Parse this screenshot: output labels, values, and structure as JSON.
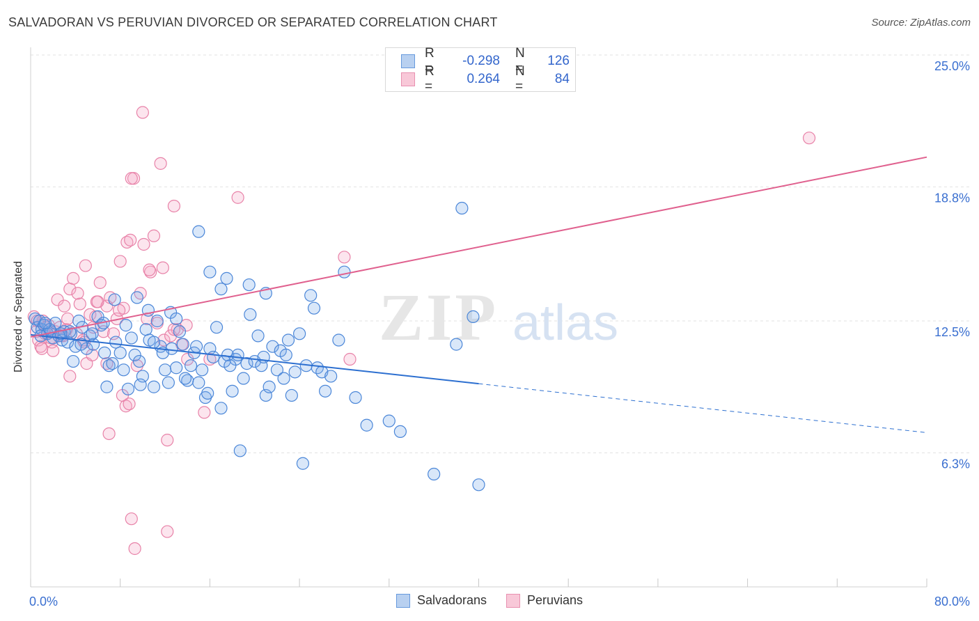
{
  "header": {
    "title": "SALVADORAN VS PERUVIAN DIVORCED OR SEPARATED CORRELATION CHART",
    "source": "Source: ZipAtlas.com"
  },
  "watermark": {
    "zip": "ZIP",
    "atlas": "atlas"
  },
  "legend": {
    "rows": [
      {
        "r_label": "R =",
        "r_value": "-0.298",
        "n_label": "N =",
        "n_value": "126",
        "color": "#6699dd",
        "fill": "#b8d0f0"
      },
      {
        "r_label": "R =",
        "r_value": "0.264",
        "n_label": "N =",
        "n_value": "84",
        "color": "#e890b0",
        "fill": "#f8c8d8"
      }
    ]
  },
  "bottom_legend": {
    "items": [
      "Salvadorans",
      "Peruvians"
    ]
  },
  "chart_data": {
    "type": "scatter",
    "title": "SALVADORAN VS PERUVIAN DIVORCED OR SEPARATED CORRELATION CHART",
    "ylabel": "Divorced or Separated",
    "xlabel": "",
    "xlim": [
      0,
      80
    ],
    "ylim": [
      0,
      25
    ],
    "x_tick_labels": [
      "0.0%",
      "80.0%"
    ],
    "y_tick_labels": [
      "25.0%",
      "18.8%",
      "12.5%",
      "6.3%"
    ],
    "y_ticks": [
      25.0,
      18.8,
      12.5,
      6.3
    ],
    "grid": true,
    "legend_position": "top-center",
    "series": [
      {
        "name": "Salvadorans",
        "color": "#4a86d8",
        "fill": "rgba(120,170,235,0.28)",
        "trend": {
          "x0": 0,
          "y0": 11.85,
          "x1": 40,
          "y1": 9.55,
          "dash_to_x": 80,
          "dash_to_y": 7.25,
          "color": "#2c6fd0"
        },
        "points": [
          [
            0.4,
            12.6
          ],
          [
            0.6,
            12.2
          ],
          [
            0.8,
            12.5
          ],
          [
            1.0,
            12.1
          ],
          [
            1.2,
            12.3
          ],
          [
            1.5,
            11.9
          ],
          [
            1.8,
            12.0
          ],
          [
            2.0,
            11.7
          ],
          [
            2.2,
            12.4
          ],
          [
            2.5,
            11.8
          ],
          [
            2.8,
            11.6
          ],
          [
            3.0,
            12.0
          ],
          [
            3.3,
            11.5
          ],
          [
            3.6,
            11.9
          ],
          [
            3.8,
            10.6
          ],
          [
            4.0,
            11.3
          ],
          [
            4.3,
            12.5
          ],
          [
            4.6,
            12.2
          ],
          [
            5.0,
            11.2
          ],
          [
            5.3,
            11.8
          ],
          [
            5.6,
            11.4
          ],
          [
            6.0,
            12.7
          ],
          [
            6.3,
            12.3
          ],
          [
            6.6,
            11.0
          ],
          [
            7.0,
            10.4
          ],
          [
            7.3,
            10.5
          ],
          [
            7.6,
            11.5
          ],
          [
            8.0,
            11.0
          ],
          [
            8.3,
            10.2
          ],
          [
            8.7,
            9.3
          ],
          [
            9.0,
            11.7
          ],
          [
            9.3,
            10.9
          ],
          [
            9.7,
            10.6
          ],
          [
            10.0,
            9.9
          ],
          [
            10.3,
            12.1
          ],
          [
            10.6,
            11.6
          ],
          [
            11.0,
            9.4
          ],
          [
            11.3,
            12.5
          ],
          [
            11.6,
            11.3
          ],
          [
            12.0,
            10.2
          ],
          [
            12.3,
            9.6
          ],
          [
            12.6,
            11.2
          ],
          [
            13.0,
            10.3
          ],
          [
            13.3,
            12.0
          ],
          [
            13.6,
            11.4
          ],
          [
            14.0,
            9.7
          ],
          [
            14.3,
            10.4
          ],
          [
            14.6,
            11.0
          ],
          [
            15.0,
            9.6
          ],
          [
            15.3,
            10.2
          ],
          [
            15.6,
            8.9
          ],
          [
            16.0,
            11.2
          ],
          [
            16.3,
            10.8
          ],
          [
            16.6,
            12.2
          ],
          [
            17.0,
            8.4
          ],
          [
            17.3,
            10.6
          ],
          [
            17.6,
            10.9
          ],
          [
            18.0,
            9.2
          ],
          [
            18.3,
            10.7
          ],
          [
            18.7,
            6.4
          ],
          [
            19.0,
            9.8
          ],
          [
            19.3,
            10.5
          ],
          [
            19.6,
            12.8
          ],
          [
            20.0,
            10.6
          ],
          [
            20.3,
            11.8
          ],
          [
            20.6,
            10.4
          ],
          [
            21.0,
            9.0
          ],
          [
            21.3,
            9.4
          ],
          [
            21.6,
            11.3
          ],
          [
            22.0,
            10.2
          ],
          [
            22.3,
            11.1
          ],
          [
            22.6,
            9.8
          ],
          [
            23.0,
            11.6
          ],
          [
            23.3,
            9.0
          ],
          [
            23.6,
            10.1
          ],
          [
            24.0,
            11.9
          ],
          [
            24.3,
            5.8
          ],
          [
            24.6,
            10.4
          ],
          [
            25.0,
            13.7
          ],
          [
            25.3,
            13.1
          ],
          [
            25.6,
            10.3
          ],
          [
            26.0,
            10.1
          ],
          [
            26.3,
            9.2
          ],
          [
            27.5,
            11.6
          ],
          [
            28.0,
            14.8
          ],
          [
            29.0,
            8.9
          ],
          [
            30.0,
            7.6
          ],
          [
            32.0,
            7.8
          ],
          [
            33.0,
            7.3
          ],
          [
            36.0,
            5.3
          ],
          [
            38.0,
            11.4
          ],
          [
            38.5,
            17.8
          ],
          [
            39.5,
            12.7
          ],
          [
            40.0,
            4.8
          ],
          [
            15.0,
            16.7
          ],
          [
            16.0,
            14.8
          ],
          [
            17.0,
            14.0
          ],
          [
            17.5,
            14.5
          ],
          [
            19.5,
            14.2
          ],
          [
            21.0,
            13.8
          ],
          [
            9.5,
            13.6
          ],
          [
            10.5,
            13.0
          ],
          [
            11.0,
            11.5
          ],
          [
            12.5,
            12.9
          ],
          [
            13.0,
            12.6
          ],
          [
            8.5,
            12.3
          ],
          [
            7.5,
            13.5
          ],
          [
            6.5,
            12.4
          ],
          [
            5.5,
            11.9
          ],
          [
            4.5,
            11.4
          ],
          [
            3.5,
            12.0
          ],
          [
            2.7,
            11.9
          ],
          [
            1.7,
            12.1
          ],
          [
            0.9,
            11.8
          ],
          [
            1.3,
            12.4
          ],
          [
            20.8,
            10.8
          ],
          [
            18.5,
            10.9
          ],
          [
            14.8,
            11.3
          ],
          [
            11.8,
            11.0
          ],
          [
            6.8,
            9.4
          ],
          [
            9.8,
            9.5
          ],
          [
            13.8,
            9.8
          ],
          [
            15.8,
            9.1
          ],
          [
            17.8,
            10.4
          ],
          [
            22.8,
            10.9
          ],
          [
            26.8,
            9.9
          ]
        ]
      },
      {
        "name": "Peruvians",
        "color": "#e882a8",
        "fill": "rgba(245,170,200,0.30)",
        "trend": {
          "x0": 0,
          "y0": 11.75,
          "x1": 80,
          "y1": 20.2,
          "color": "#e0608e"
        },
        "points": [
          [
            0.3,
            12.7
          ],
          [
            0.5,
            12.0
          ],
          [
            0.7,
            11.6
          ],
          [
            0.9,
            11.3
          ],
          [
            1.1,
            12.5
          ],
          [
            1.3,
            11.9
          ],
          [
            1.6,
            12.3
          ],
          [
            1.9,
            11.5
          ],
          [
            2.2,
            12.0
          ],
          [
            2.4,
            13.5
          ],
          [
            2.7,
            11.8
          ],
          [
            3.0,
            13.2
          ],
          [
            3.2,
            12.1
          ],
          [
            3.5,
            14.0
          ],
          [
            3.8,
            14.5
          ],
          [
            4.1,
            11.9
          ],
          [
            4.4,
            13.3
          ],
          [
            4.7,
            11.6
          ],
          [
            5.0,
            10.5
          ],
          [
            5.3,
            12.8
          ],
          [
            5.6,
            12.2
          ],
          [
            5.9,
            13.4
          ],
          [
            6.2,
            14.3
          ],
          [
            6.5,
            12.0
          ],
          [
            6.8,
            13.2
          ],
          [
            7.1,
            13.6
          ],
          [
            7.4,
            11.9
          ],
          [
            7.7,
            12.6
          ],
          [
            8.0,
            15.3
          ],
          [
            8.3,
            13.1
          ],
          [
            8.6,
            16.2
          ],
          [
            8.9,
            16.3
          ],
          [
            9.2,
            19.2
          ],
          [
            9.5,
            10.4
          ],
          [
            9.8,
            13.8
          ],
          [
            10.1,
            16.1
          ],
          [
            10.4,
            12.6
          ],
          [
            10.7,
            14.8
          ],
          [
            11.0,
            16.5
          ],
          [
            11.3,
            12.4
          ],
          [
            11.6,
            19.9
          ],
          [
            11.9,
            11.6
          ],
          [
            12.2,
            6.9
          ],
          [
            12.5,
            11.8
          ],
          [
            12.8,
            17.9
          ],
          [
            13.1,
            12.1
          ],
          [
            13.5,
            11.4
          ],
          [
            14.0,
            10.7
          ],
          [
            10.0,
            22.3
          ],
          [
            9.0,
            19.2
          ],
          [
            8.2,
            9.0
          ],
          [
            8.5,
            8.5
          ],
          [
            8.8,
            8.6
          ],
          [
            7.0,
            7.2
          ],
          [
            9.0,
            3.2
          ],
          [
            9.3,
            1.8
          ],
          [
            12.2,
            2.6
          ],
          [
            15.5,
            8.2
          ],
          [
            16.0,
            10.7
          ],
          [
            18.5,
            18.3
          ],
          [
            28.0,
            15.5
          ],
          [
            28.5,
            10.7
          ],
          [
            69.5,
            21.1
          ],
          [
            2.0,
            11.1
          ],
          [
            1.0,
            11.2
          ],
          [
            3.5,
            9.9
          ],
          [
            4.8,
            11.5
          ],
          [
            5.5,
            10.9
          ],
          [
            6.0,
            13.4
          ],
          [
            6.8,
            10.5
          ],
          [
            4.2,
            13.8
          ],
          [
            3.3,
            12.6
          ],
          [
            2.6,
            12.2
          ],
          [
            1.4,
            12.2
          ],
          [
            0.6,
            12.5
          ],
          [
            1.8,
            11.7
          ],
          [
            2.9,
            11.8
          ],
          [
            5.8,
            12.7
          ],
          [
            7.9,
            13.0
          ],
          [
            10.6,
            14.9
          ],
          [
            11.8,
            15.0
          ],
          [
            12.8,
            12.1
          ],
          [
            13.9,
            12.3
          ],
          [
            4.9,
            15.1
          ]
        ]
      }
    ]
  }
}
